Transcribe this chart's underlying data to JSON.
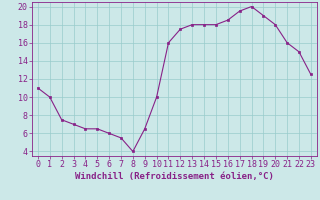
{
  "x": [
    0,
    1,
    2,
    3,
    4,
    5,
    6,
    7,
    8,
    9,
    10,
    11,
    12,
    13,
    14,
    15,
    16,
    17,
    18,
    19,
    20,
    21,
    22,
    23
  ],
  "y": [
    11,
    10,
    7.5,
    7,
    6.5,
    6.5,
    6,
    5.5,
    4,
    6.5,
    10,
    16,
    17.5,
    18,
    18,
    18,
    18.5,
    19.5,
    20,
    19,
    18,
    16,
    15,
    12.5
  ],
  "line_color": "#882288",
  "marker_color": "#882288",
  "bg_color": "#cce8e8",
  "grid_color": "#99cccc",
  "xlabel": "Windchill (Refroidissement éolien,°C)",
  "xlim": [
    -0.5,
    23.5
  ],
  "ylim": [
    3.5,
    20.5
  ],
  "yticks": [
    4,
    6,
    8,
    10,
    12,
    14,
    16,
    18,
    20
  ],
  "xticks": [
    0,
    1,
    2,
    3,
    4,
    5,
    6,
    7,
    8,
    9,
    10,
    11,
    12,
    13,
    14,
    15,
    16,
    17,
    18,
    19,
    20,
    21,
    22,
    23
  ],
  "xlabel_fontsize": 6.5,
  "tick_fontsize": 6,
  "label_color": "#882288"
}
